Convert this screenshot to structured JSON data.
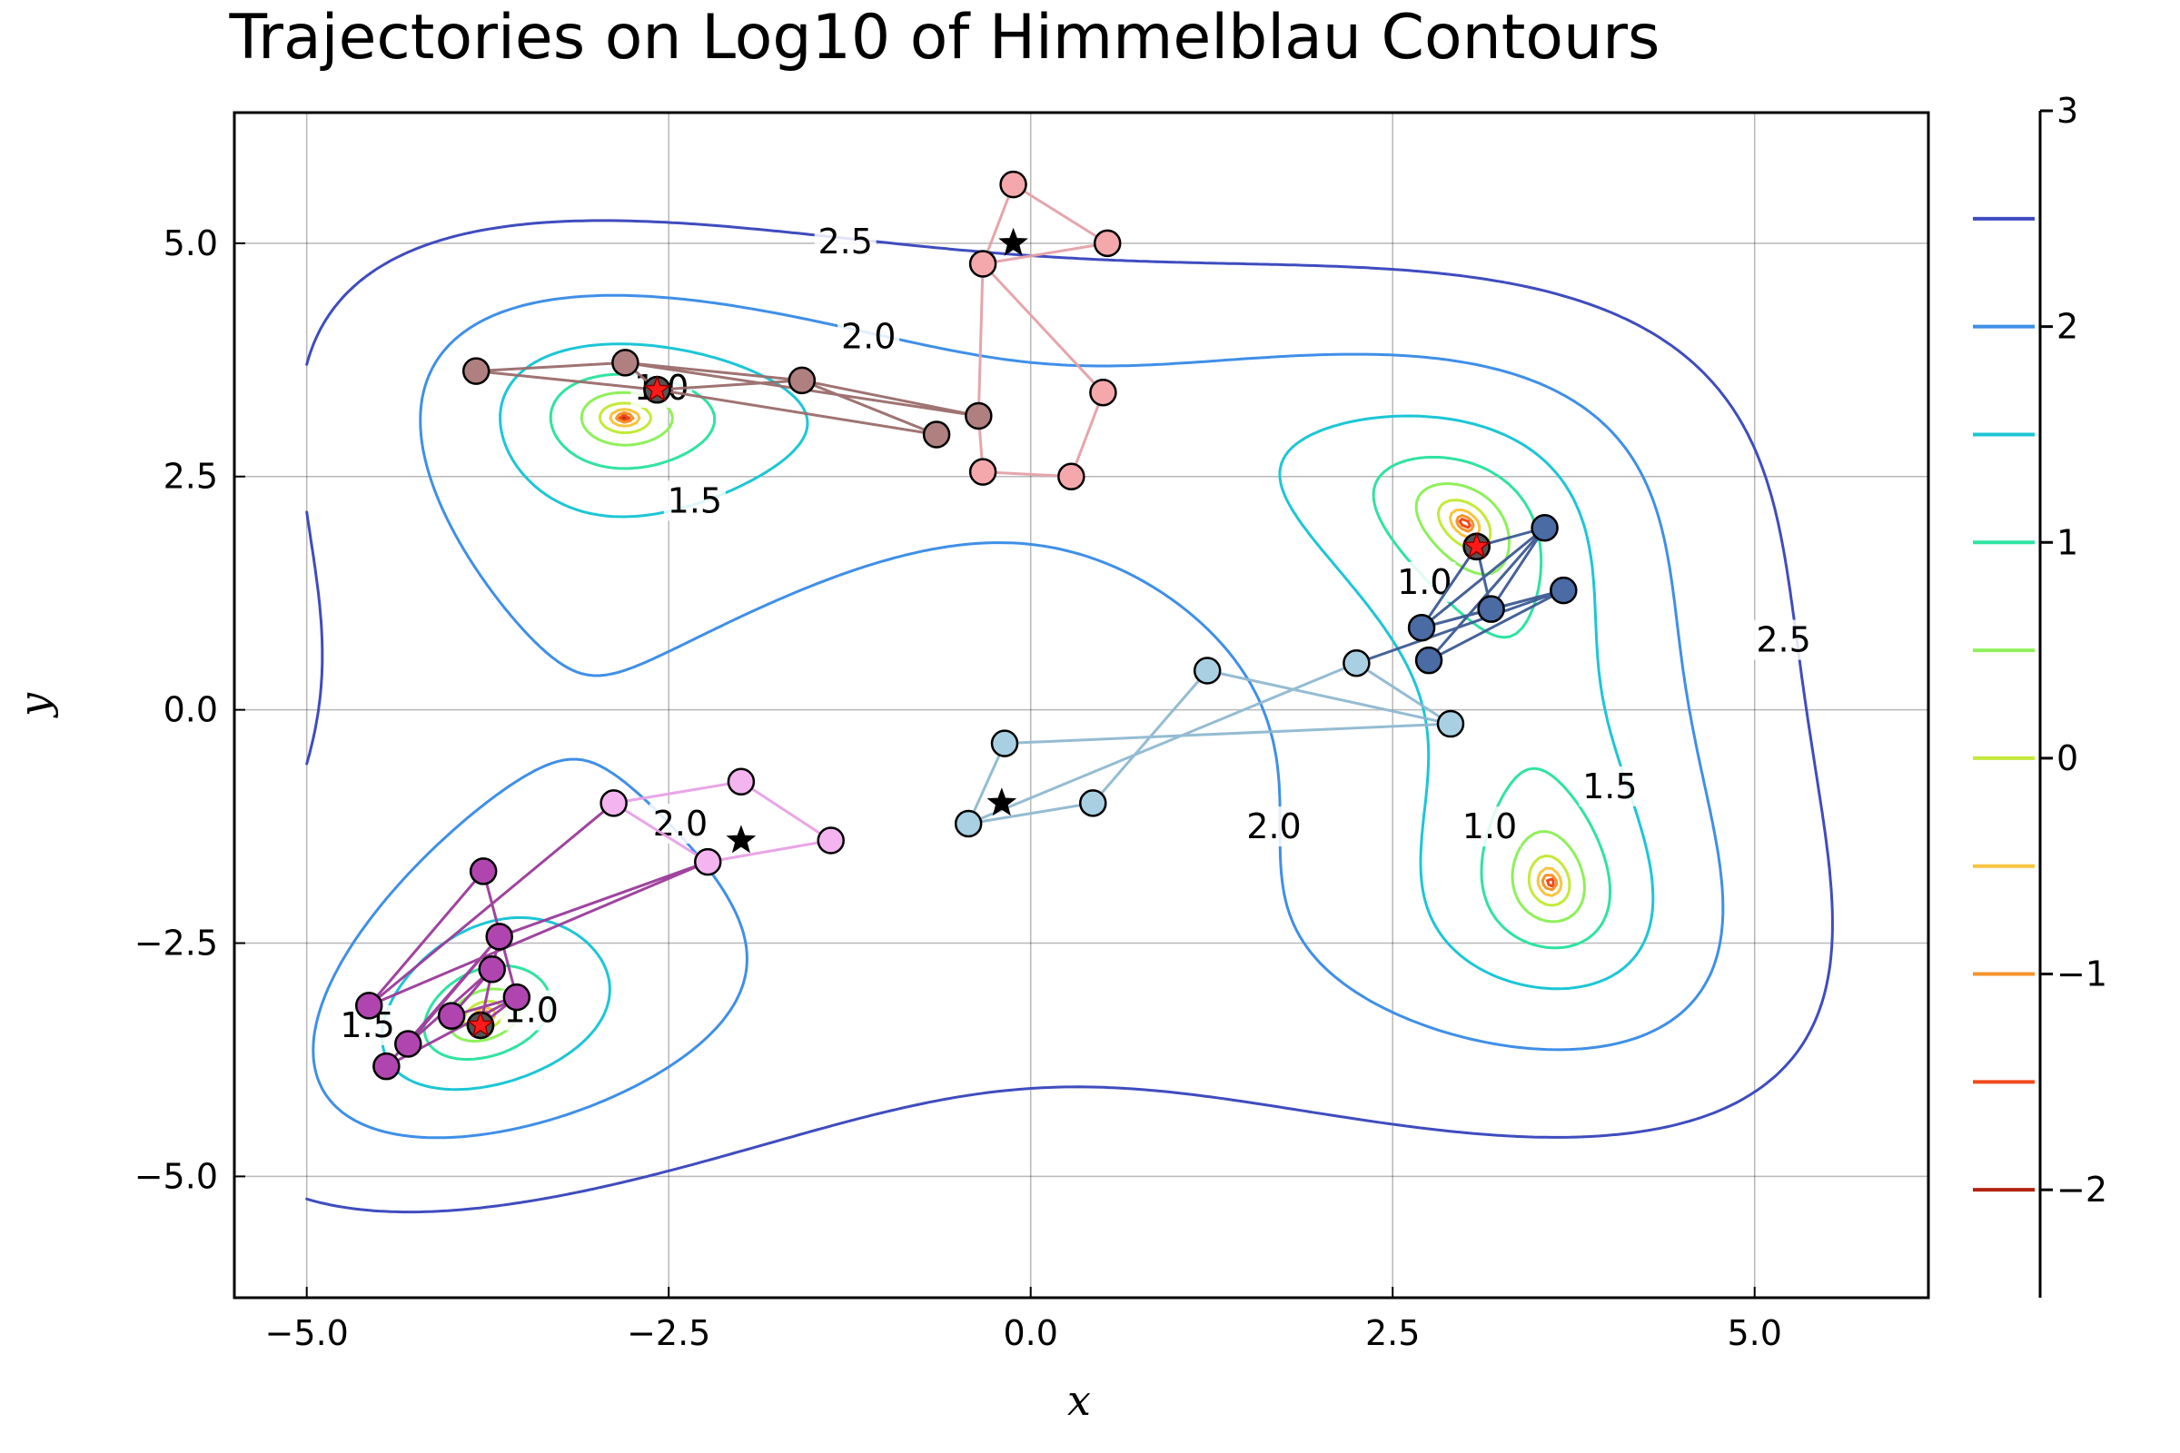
{
  "chart_data": {
    "type": "line",
    "title": "Trajectories on Log10 of Himmelblau Contours",
    "xlabel": "x",
    "ylabel": "y",
    "xlim": [
      -5.5,
      6.2
    ],
    "ylim": [
      -6.3,
      6.4
    ],
    "x_ticks": [
      -5.0,
      -2.5,
      0.0,
      2.5,
      5.0
    ],
    "x_tick_labels": [
      "−5.0",
      "−2.5",
      "0.0",
      "2.5",
      "5.0"
    ],
    "y_ticks": [
      -5.0,
      -2.5,
      0.0,
      2.5,
      5.0
    ],
    "y_tick_labels": [
      "−5.0",
      "−2.5",
      "0.0",
      "2.5",
      "5.0"
    ],
    "grid": true,
    "contour_levels": [
      -2,
      -1.5,
      -1,
      -0.5,
      0,
      0.5,
      1,
      1.5,
      2,
      2.5
    ],
    "contour_colors": [
      "#b2230f",
      "#f04a1a",
      "#f5922a",
      "#f7c43f",
      "#c4ea3a",
      "#8ef05a",
      "#2fe3a0",
      "#1cc6d6",
      "#3f8fe8",
      "#3f4cbf"
    ],
    "contour_label_values": [
      {
        "text": "2.5",
        "x": -1.28,
        "y": 5.02
      },
      {
        "text": "2.0",
        "x": -1.12,
        "y": 4.0
      },
      {
        "text": "1.5",
        "x": -2.32,
        "y": 2.24
      },
      {
        "text": "1.0",
        "x": -2.55,
        "y": 3.45
      },
      {
        "text": "1.0",
        "x": 2.72,
        "y": 1.37
      },
      {
        "text": "2.5",
        "x": 5.2,
        "y": 0.75
      },
      {
        "text": "1.5",
        "x": 4.0,
        "y": -0.82
      },
      {
        "text": "1.0",
        "x": 3.17,
        "y": -1.25
      },
      {
        "text": "2.0",
        "x": 1.68,
        "y": -1.25
      },
      {
        "text": "2.0",
        "x": -2.42,
        "y": -1.22
      },
      {
        "text": "1.0",
        "x": -3.45,
        "y": -3.22
      },
      {
        "text": "1.5",
        "x": -4.58,
        "y": -3.38
      }
    ],
    "colorbar": {
      "range": [
        -2.5,
        3.0
      ],
      "ticks": [
        3,
        2,
        1,
        0,
        -1,
        -2
      ],
      "tick_labels": [
        "3",
        "2",
        "1",
        "0",
        "−1",
        "−2"
      ],
      "level_marks": [
        2.5,
        2.0,
        1.5,
        1.0,
        0.5,
        0.0,
        -0.5,
        -1.0,
        -1.5,
        -2.0
      ]
    },
    "series": [
      {
        "color": "#f4a8ac",
        "edge": "#e4a0a8",
        "points": [
          [
            -0.12,
            5.63
          ],
          [
            0.53,
            5.0
          ],
          [
            -0.33,
            4.78
          ],
          [
            0.5,
            3.4
          ],
          [
            -0.33,
            2.55
          ],
          [
            0.28,
            2.5
          ]
        ],
        "path": [
          [
            -0.12,
            5.63
          ],
          [
            0.53,
            5.0
          ],
          [
            -0.33,
            4.78
          ],
          [
            0.5,
            3.4
          ],
          [
            0.28,
            2.5
          ],
          [
            -0.33,
            2.55
          ],
          [
            -0.36,
            3.15
          ],
          [
            -0.33,
            4.78
          ],
          [
            -0.12,
            5.63
          ]
        ]
      },
      {
        "color": "#b08080",
        "edge": "#9a6c6c",
        "points": [
          [
            -3.83,
            3.63
          ],
          [
            -2.8,
            3.72
          ],
          [
            -1.58,
            3.53
          ],
          [
            -0.36,
            3.15
          ],
          [
            -0.65,
            2.95
          ],
          [
            -2.58,
            3.43
          ]
        ],
        "path": [
          [
            -3.83,
            3.63
          ],
          [
            -2.8,
            3.72
          ],
          [
            -1.58,
            3.53
          ],
          [
            -0.65,
            2.95
          ],
          [
            -2.58,
            3.43
          ],
          [
            -1.58,
            3.53
          ],
          [
            -0.36,
            3.15
          ],
          [
            -2.8,
            3.72
          ],
          [
            -2.58,
            3.43
          ],
          [
            -3.83,
            3.63
          ]
        ]
      },
      {
        "color": "#a9d0e2",
        "edge": "#8fb8d0",
        "points": [
          [
            -0.43,
            -1.22
          ],
          [
            -0.18,
            -0.36
          ],
          [
            0.43,
            -1.0
          ],
          [
            1.22,
            0.42
          ],
          [
            2.25,
            0.5
          ],
          [
            2.9,
            -0.15
          ]
        ],
        "path": [
          [
            -0.43,
            -1.22
          ],
          [
            -0.18,
            -0.36
          ],
          [
            2.9,
            -0.15
          ],
          [
            1.22,
            0.42
          ],
          [
            0.43,
            -1.0
          ],
          [
            -0.43,
            -1.22
          ],
          [
            2.25,
            0.5
          ],
          [
            2.9,
            -0.15
          ]
        ]
      },
      {
        "color": "#4a6ba4",
        "edge": "#3c5a93",
        "points": [
          [
            2.75,
            0.53
          ],
          [
            2.7,
            0.88
          ],
          [
            3.18,
            1.08
          ],
          [
            3.68,
            1.28
          ],
          [
            3.55,
            1.95
          ],
          [
            3.08,
            1.75
          ]
        ],
        "path": [
          [
            2.25,
            0.5
          ],
          [
            3.68,
            1.28
          ],
          [
            2.75,
            0.53
          ],
          [
            3.55,
            1.95
          ],
          [
            2.7,
            0.88
          ],
          [
            3.68,
            1.28
          ],
          [
            3.18,
            1.08
          ],
          [
            3.55,
            1.95
          ],
          [
            3.08,
            1.75
          ],
          [
            2.7,
            0.88
          ],
          [
            3.18,
            1.08
          ],
          [
            3.08,
            1.75
          ]
        ]
      },
      {
        "color": "#f4b4f0",
        "edge": "#e8a0e6",
        "points": [
          [
            -2.0,
            -0.77
          ],
          [
            -1.38,
            -1.4
          ],
          [
            -2.23,
            -1.63
          ],
          [
            -2.88,
            -1.0
          ]
        ],
        "path": [
          [
            -2.0,
            -0.77
          ],
          [
            -1.38,
            -1.4
          ],
          [
            -2.23,
            -1.63
          ],
          [
            -2.88,
            -1.0
          ],
          [
            -2.0,
            -0.77
          ]
        ]
      },
      {
        "color": "#b045b0",
        "edge": "#9a3a9a",
        "points": [
          [
            -3.78,
            -1.73
          ],
          [
            -3.67,
            -2.43
          ],
          [
            -3.72,
            -2.78
          ],
          [
            -3.55,
            -3.08
          ],
          [
            -4.0,
            -3.28
          ],
          [
            -4.57,
            -3.17
          ],
          [
            -4.3,
            -3.58
          ],
          [
            -4.45,
            -3.82
          ],
          [
            -3.8,
            -3.38
          ]
        ],
        "path": [
          [
            -2.88,
            -1.0
          ],
          [
            -4.57,
            -3.17
          ],
          [
            -3.78,
            -1.73
          ],
          [
            -3.55,
            -3.08
          ],
          [
            -4.45,
            -3.82
          ],
          [
            -3.67,
            -2.43
          ],
          [
            -4.3,
            -3.58
          ],
          [
            -3.72,
            -2.78
          ],
          [
            -4.0,
            -3.28
          ],
          [
            -3.55,
            -3.08
          ],
          [
            -3.8,
            -3.38
          ],
          [
            -3.67,
            -2.43
          ],
          [
            -2.23,
            -1.63
          ],
          [
            -4.57,
            -3.17
          ]
        ]
      }
    ],
    "start_markers": [
      [
        -0.12,
        5.0
      ],
      [
        -0.2,
        -1.0
      ],
      [
        -2.0,
        -1.4
      ]
    ],
    "end_markers": [
      [
        -2.58,
        3.43
      ],
      [
        3.08,
        1.75
      ],
      [
        -3.8,
        -3.38
      ]
    ],
    "minima": [
      [
        3.0,
        2.0
      ],
      [
        -2.805,
        3.131
      ],
      [
        -3.779,
        -3.283
      ],
      [
        3.584,
        -1.848
      ]
    ]
  }
}
